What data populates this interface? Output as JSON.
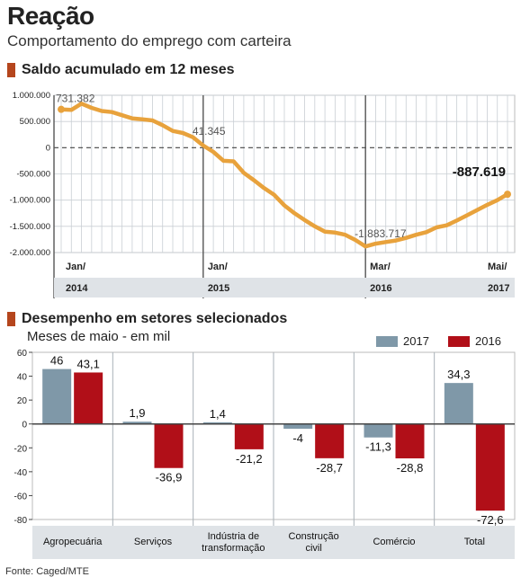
{
  "header": {
    "title": "Reação",
    "subtitle": "Comportamento do emprego com carteira"
  },
  "colors": {
    "accent": "#b5461d",
    "line": "#e8a23c",
    "bar_2017": "#7f98a8",
    "bar_2016": "#b10f18",
    "band": "#dfe3e7"
  },
  "section1": {
    "label": "Saldo acumulado em 12 meses"
  },
  "section2": {
    "label": "Desempenho em setores selecionados",
    "sublabel": "Meses de maio - em mil"
  },
  "source": "Fonte: Caged/MTE",
  "chart_data": [
    {
      "type": "line",
      "title": "Saldo acumulado em 12 meses",
      "y_ticks": [
        "1.000.000",
        "500.000",
        "0",
        "-500.000",
        "-1.000.000",
        "-1.500.000",
        "-2.000.000"
      ],
      "ylim": [
        -2000000,
        1000000
      ],
      "x_labels": [
        {
          "month": "Jan/",
          "year": "2014"
        },
        {
          "month": "Jan/",
          "year": "2015"
        },
        {
          "month": "Mar/",
          "year": "2016"
        },
        {
          "month": "Mai/",
          "year": "2017"
        }
      ],
      "series": [
        {
          "values": [
            731382,
            720000,
            840000,
            760000,
            700000,
            680000,
            620000,
            560000,
            540000,
            520000,
            430000,
            320000,
            280000,
            200000,
            41345,
            -80000,
            -250000,
            -260000,
            -480000,
            -620000,
            -770000,
            -900000,
            -1100000,
            -1250000,
            -1380000,
            -1500000,
            -1600000,
            -1620000,
            -1660000,
            -1760000,
            -1883717,
            -1830000,
            -1800000,
            -1770000,
            -1720000,
            -1660000,
            -1610000,
            -1520000,
            -1480000,
            -1390000,
            -1290000,
            -1190000,
            -1090000,
            -1000000,
            -887619
          ]
        }
      ],
      "annotations": [
        {
          "text": "731.382",
          "value": 731382
        },
        {
          "text": "41.345",
          "value": 41345
        },
        {
          "text": "-1.883.717",
          "value": -1883717
        },
        {
          "text": "-887.619",
          "value": -887619
        }
      ],
      "grid": true
    },
    {
      "type": "bar",
      "title": "Desempenho em setores selecionados",
      "subtitle": "Meses de maio - em mil",
      "categories": [
        "Agropecuária",
        "Serviços",
        "Indústria de\ntransformação",
        "Construção\ncivil",
        "Comércio",
        "Total"
      ],
      "series": [
        {
          "name": "2017",
          "values": [
            46,
            1.9,
            1.4,
            -4,
            -11.3,
            34.3
          ],
          "labels": [
            "46",
            "1,9",
            "1,4",
            "-4",
            "-11,3",
            "34,3"
          ]
        },
        {
          "name": "2016",
          "values": [
            43.1,
            -36.9,
            -21.2,
            -28.7,
            -28.8,
            -72.6
          ],
          "labels": [
            "43,1",
            "-36,9",
            "-21,2",
            "-28,7",
            "-28,8",
            "-72,6"
          ]
        }
      ],
      "y_ticks": [
        "60",
        "40",
        "20",
        "0",
        "-20",
        "-40",
        "-60",
        "-80"
      ],
      "ylim": [
        -80,
        60
      ],
      "legend": "top-right",
      "grid": false
    }
  ]
}
